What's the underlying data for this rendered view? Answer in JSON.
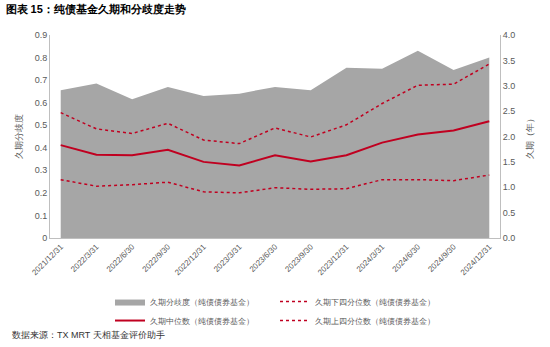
{
  "chart_data": {
    "type": "line",
    "title": "图表 15：纯债基金久期和分歧度走势",
    "annotations": [
      "数据来源：TX MRT 天相基金评价助手"
    ],
    "categories": [
      "2021/12/31",
      "2022/3/31",
      "2022/6/30",
      "2022/9/30",
      "2022/12/31",
      "2023/3/31",
      "2023/6/30",
      "2023/9/30",
      "2023/12/31",
      "2024/3/31",
      "2024/6/30",
      "2024/9/30",
      "2024/12/31"
    ],
    "y_label": "久期分歧度",
    "y2_label": "久期（年）",
    "ylim": [
      0,
      0.9
    ],
    "yticks": [
      0,
      0.1,
      0.2,
      0.3,
      0.4,
      0.5,
      0.6,
      0.7,
      0.8,
      0.9
    ],
    "y2lim": [
      0,
      4.0
    ],
    "y2ticks": [
      {
        "value": 0,
        "label": "0.0"
      },
      {
        "value": 0.5,
        "label": "0.5"
      },
      {
        "value": 1,
        "label": "1.0"
      },
      {
        "value": 1.5,
        "label": "1.5"
      },
      {
        "value": 2,
        "label": "2.0"
      },
      {
        "value": 2.5,
        "label": "2.5"
      },
      {
        "value": 3,
        "label": "3.0"
      },
      {
        "value": 3.5,
        "label": "3.5"
      },
      {
        "value": 4,
        "label": "4.0"
      }
    ],
    "grid": false,
    "legend": "bottom",
    "series": [
      {
        "name": "久期分歧度（纯债债券基金）",
        "type": "area",
        "color": "#a6a6a6",
        "values": [
          0.655,
          0.685,
          0.615,
          0.67,
          0.63,
          0.64,
          0.67,
          0.655,
          0.755,
          0.75,
          0.83,
          0.745,
          0.8
        ]
      },
      {
        "name": "久期下四分位数（纯债债券基金）",
        "type": "line",
        "axis": "y2",
        "color": "#c00020",
        "line_style": "dot",
        "values": [
          2.47,
          2.15,
          2.06,
          2.26,
          1.93,
          1.86,
          2.17,
          1.99,
          2.23,
          2.65,
          3.01,
          3.03,
          3.43
        ]
      },
      {
        "name": "久期中位数（纯债债券基金）",
        "type": "line",
        "axis": "y2",
        "color": "#c00020",
        "line_style": "solid",
        "values": [
          1.83,
          1.64,
          1.63,
          1.74,
          1.5,
          1.43,
          1.63,
          1.51,
          1.63,
          1.88,
          2.04,
          2.12,
          2.3
        ]
      },
      {
        "name": "久期上四分位数（纯债债券基金）",
        "type": "line",
        "axis": "y2",
        "color": "#c00020",
        "line_style": "dot",
        "values": [
          1.15,
          1.02,
          1.05,
          1.1,
          0.91,
          0.89,
          0.99,
          0.96,
          0.97,
          1.15,
          1.15,
          1.13,
          1.24
        ]
      }
    ]
  }
}
